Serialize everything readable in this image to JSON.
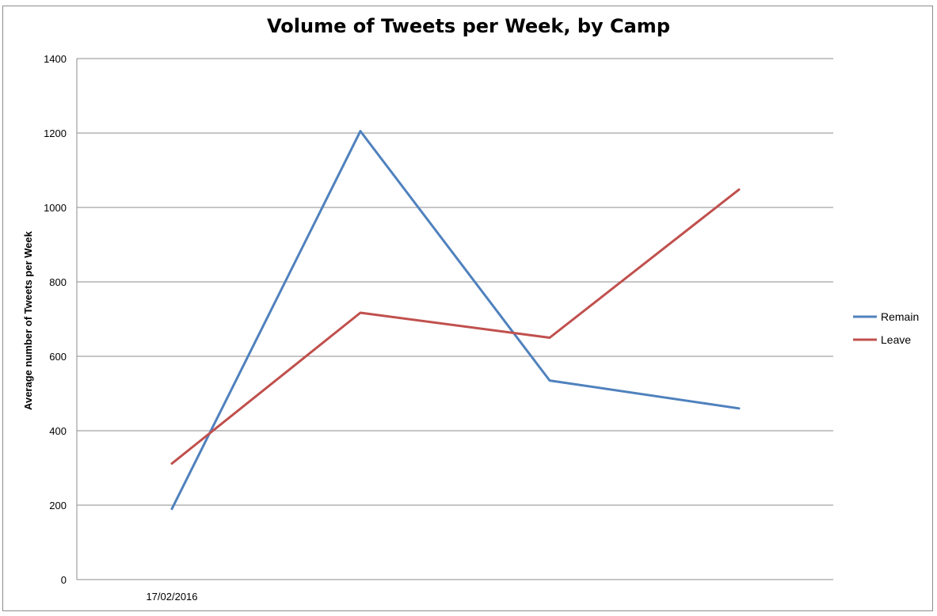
{
  "chart_data": {
    "type": "line",
    "title": "Volume of Tweets per Week, by Camp",
    "xlabel": "",
    "ylabel": "Average number of Tweets per Week",
    "ylim": [
      0,
      1400
    ],
    "yticks": [
      0,
      200,
      400,
      600,
      800,
      1000,
      1200,
      1400
    ],
    "categories": [
      "17/02/2016",
      "",
      "",
      ""
    ],
    "grid": true,
    "legend_position": "right",
    "series": [
      {
        "name": "Remain",
        "color": "#4f81bd",
        "values": [
          190,
          1205,
          535,
          460
        ]
      },
      {
        "name": "Leave",
        "color": "#c0504d",
        "values": [
          312,
          717,
          650,
          1048
        ]
      }
    ]
  }
}
